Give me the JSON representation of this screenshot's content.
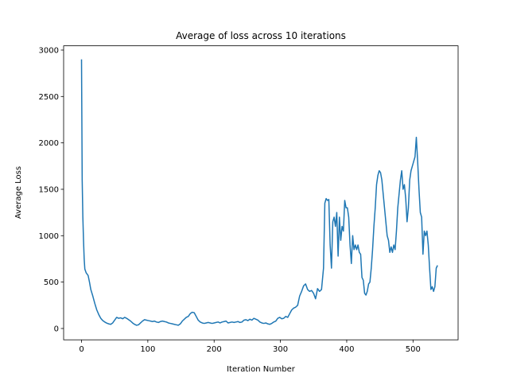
{
  "chart_data": {
    "type": "line",
    "title": "Average of loss across 10 iterations",
    "x_label": "Iteration Number",
    "y_label": "Average Loss",
    "xlim": [
      -27,
      568
    ],
    "ylim": [
      -122,
      3046
    ],
    "xticks": [
      0,
      100,
      200,
      300,
      400,
      500
    ],
    "yticks": [
      0,
      500,
      1000,
      1500,
      2000,
      2500,
      3000
    ],
    "series": [
      {
        "color": "#1f77b4",
        "x": [
          0,
          1,
          2,
          3,
          4,
          5,
          7,
          10,
          12,
          14,
          17,
          20,
          23,
          26,
          29,
          32,
          35,
          38,
          41,
          44,
          47,
          50,
          53,
          56,
          59,
          62,
          65,
          68,
          71,
          74,
          77,
          80,
          83,
          86,
          89,
          92,
          95,
          98,
          101,
          104,
          107,
          110,
          113,
          116,
          119,
          122,
          125,
          128,
          131,
          134,
          137,
          140,
          143,
          146,
          149,
          152,
          155,
          158,
          161,
          164,
          167,
          170,
          173,
          176,
          179,
          182,
          185,
          188,
          191,
          194,
          197,
          200,
          203,
          206,
          209,
          212,
          215,
          218,
          221,
          224,
          227,
          230,
          233,
          236,
          239,
          242,
          245,
          248,
          251,
          254,
          257,
          260,
          263,
          266,
          269,
          272,
          275,
          278,
          281,
          284,
          287,
          290,
          293,
          296,
          299,
          302,
          305,
          308,
          311,
          314,
          317,
          320,
          323,
          326,
          329,
          332,
          335,
          338,
          341,
          344,
          347,
          350,
          353,
          356,
          359,
          362,
          365,
          367,
          369,
          371,
          373,
          375,
          377,
          379,
          381,
          383,
          385,
          387,
          389,
          391,
          393,
          395,
          397,
          399,
          401,
          403,
          405,
          407,
          409,
          411,
          413,
          415,
          417,
          419,
          421,
          423,
          425,
          427,
          429,
          431,
          433,
          435,
          437,
          439,
          441,
          443,
          445,
          447,
          449,
          451,
          453,
          455,
          457,
          459,
          461,
          463,
          465,
          467,
          469,
          471,
          473,
          475,
          477,
          479,
          481,
          483,
          485,
          487,
          489,
          491,
          493,
          495,
          497,
          499,
          501,
          503,
          505,
          507,
          509,
          511,
          513,
          515,
          517,
          519,
          521,
          523,
          525,
          527,
          529,
          531,
          533,
          535,
          537
        ],
        "values": [
          2900,
          1600,
          1200,
          950,
          750,
          640,
          600,
          570,
          500,
          420,
          350,
          270,
          200,
          150,
          110,
          85,
          70,
          58,
          50,
          45,
          60,
          90,
          120,
          110,
          115,
          105,
          120,
          110,
          95,
          80,
          60,
          45,
          35,
          40,
          60,
          80,
          95,
          90,
          85,
          80,
          75,
          80,
          70,
          65,
          75,
          80,
          75,
          70,
          60,
          55,
          50,
          45,
          40,
          35,
          50,
          80,
          100,
          120,
          130,
          160,
          175,
          170,
          130,
          90,
          70,
          60,
          55,
          60,
          65,
          60,
          55,
          60,
          65,
          70,
          60,
          70,
          75,
          80,
          60,
          65,
          70,
          65,
          70,
          75,
          65,
          70,
          90,
          95,
          85,
          100,
          90,
          110,
          100,
          90,
          70,
          60,
          55,
          60,
          50,
          45,
          55,
          70,
          80,
          110,
          120,
          105,
          110,
          130,
          120,
          160,
          200,
          220,
          230,
          250,
          350,
          400,
          460,
          480,
          420,
          400,
          410,
          380,
          320,
          430,
          400,
          420,
          650,
          1350,
          1400,
          1380,
          1390,
          900,
          650,
          1150,
          1200,
          1100,
          1250,
          780,
          1200,
          950,
          1100,
          1050,
          1380,
          1300,
          1300,
          1200,
          900,
          700,
          1000,
          850,
          900,
          850,
          900,
          820,
          800,
          550,
          520,
          380,
          360,
          400,
          480,
          500,
          650,
          850,
          1100,
          1300,
          1550,
          1650,
          1700,
          1680,
          1600,
          1450,
          1300,
          1150,
          1000,
          950,
          820,
          880,
          820,
          900,
          850,
          1050,
          1300,
          1450,
          1600,
          1700,
          1500,
          1550,
          1400,
          1150,
          1300,
          1600,
          1700,
          1750,
          1800,
          1850,
          2060,
          1800,
          1500,
          1250,
          1200,
          800,
          1050,
          1000,
          1050,
          900,
          650,
          420,
          450,
          400,
          450,
          650,
          680
        ]
      }
    ]
  }
}
